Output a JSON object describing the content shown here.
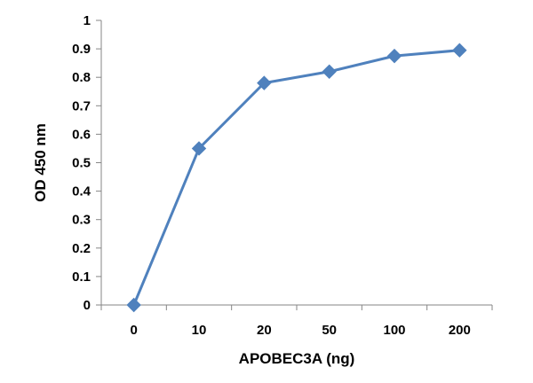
{
  "chart_data": {
    "type": "line",
    "categories": [
      "0",
      "10",
      "20",
      "50",
      "100",
      "200"
    ],
    "series": [
      {
        "values": [
          0.0,
          0.55,
          0.78,
          0.82,
          0.875,
          0.895
        ],
        "color": "#4F81BD",
        "marker": "diamond"
      }
    ],
    "xlabel": "APOBEC3A (ng)",
    "ylabel": "OD 450 nm",
    "ylim": [
      0,
      1
    ],
    "yticks": [
      "0",
      "0.1",
      "0.2",
      "0.3",
      "0.4",
      "0.5",
      "0.6",
      "0.7",
      "0.8",
      "0.9",
      "1"
    ],
    "grid": false,
    "axis_color": "#868686"
  }
}
